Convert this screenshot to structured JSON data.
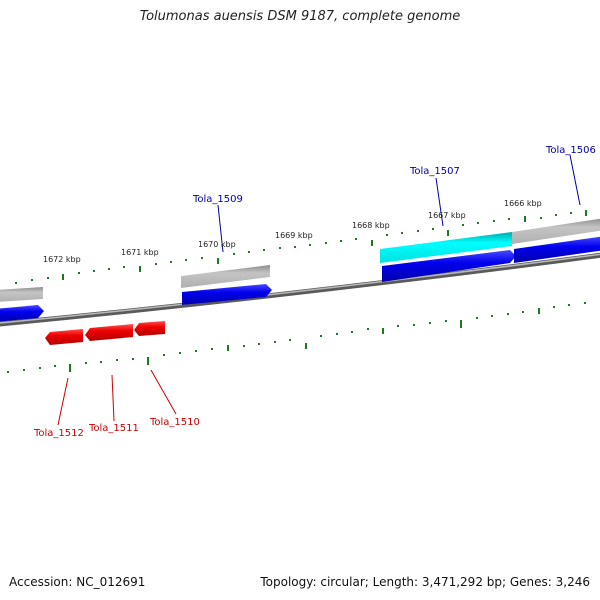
{
  "title": "Tolumonas auensis DSM 9187, complete genome",
  "footer": {
    "accession": "Accession: NC_012691",
    "summary": "Topology: circular; Length: 3,471,292 bp; Genes: 3,246"
  },
  "colors": {
    "forward_gene": "#0000ee",
    "reverse_gene": "#ee0000",
    "highlight_gene": "#00ffff",
    "other_gene": "#b4b4b4",
    "backbone": "#7a7a7a",
    "ticks": "#1f7a1f"
  },
  "kbp_labels": [
    "1672 kbp",
    "1671 kbp",
    "1670 kbp",
    "1669 kbp",
    "1668 kbp",
    "1667 kbp",
    "1666 kbp"
  ],
  "gene_labels": {
    "forward": [
      "Tola_1509",
      "Tola_1507",
      "Tola_1506"
    ],
    "reverse": [
      "Tola_1512",
      "Tola_1511",
      "Tola_1510"
    ]
  }
}
